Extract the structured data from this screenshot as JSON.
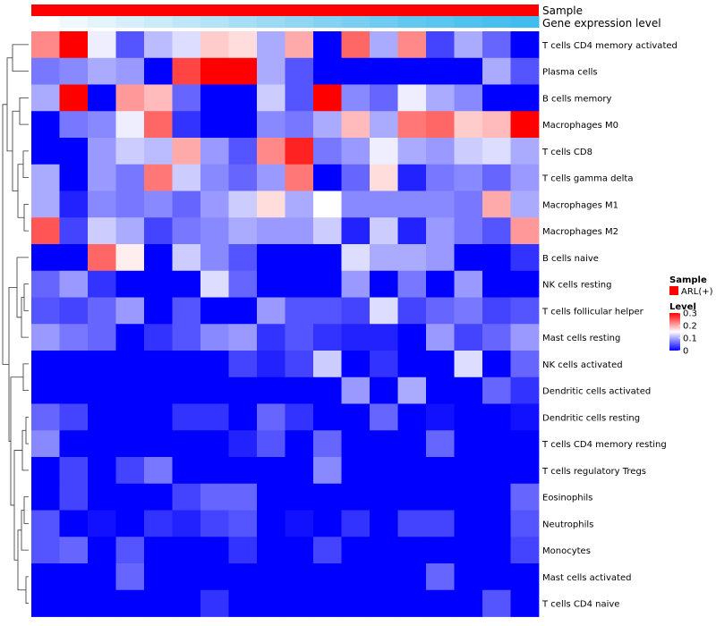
{
  "chart_data": {
    "type": "heatmap",
    "title": "",
    "annotation_tracks": [
      {
        "name": "Sample",
        "label": "Sample",
        "colors": [
          "#ff0000"
        ]
      },
      {
        "name": "Gene expression level",
        "label": "Gene expression level",
        "colors": [
          "#ffffff",
          "#eef8fd",
          "#e3f4fb",
          "#d6effa",
          "#cbebf8",
          "#c0e7f7",
          "#b5e3f6",
          "#a8def5",
          "#9cdaf4",
          "#90d6f3",
          "#84d2f2",
          "#79cef1",
          "#6ecbf1",
          "#63c8f0",
          "#5ac5ef",
          "#50c2ef",
          "#48bfee",
          "#40bcee"
        ]
      }
    ],
    "rows": [
      "T cells CD4 memory activated",
      "Plasma cells",
      "B cells memory",
      "Macrophages M0",
      "T cells CD8",
      "T cells gamma delta",
      "Macrophages M1",
      "Macrophages M2",
      "B cells naive",
      "NK cells resting",
      "T cells follicular helper",
      "Mast cells resting",
      "NK cells activated",
      "Dendritic cells activated",
      "Dendritic cells resting",
      "T cells CD4 memory resting",
      "T cells regulatory  Tregs",
      "Eosinophils",
      "Neutrophils",
      "Monocytes",
      "Mast cells activated",
      "T cells CD4 naive"
    ],
    "num_columns": 18,
    "values": [
      [
        0.22,
        0.3,
        0.14,
        0.05,
        0.11,
        0.13,
        0.18,
        0.17,
        0.1,
        0.2,
        0.0,
        0.24,
        0.1,
        0.22,
        0.04,
        0.1,
        0.06,
        0.0
      ],
      [
        0.07,
        0.08,
        0.1,
        0.09,
        0.0,
        0.26,
        0.3,
        0.31,
        0.1,
        0.05,
        0.0,
        0.0,
        0.0,
        0.0,
        0.0,
        0.0,
        0.1,
        0.05
      ],
      [
        0.1,
        0.3,
        0.0,
        0.21,
        0.19,
        0.06,
        0.0,
        0.0,
        0.12,
        0.05,
        0.31,
        0.08,
        0.06,
        0.14,
        0.1,
        0.08,
        0.0,
        0.0
      ],
      [
        0.0,
        0.07,
        0.08,
        0.14,
        0.24,
        0.03,
        0.0,
        0.0,
        0.08,
        0.07,
        0.1,
        0.19,
        0.1,
        0.23,
        0.24,
        0.18,
        0.19,
        0.3
      ],
      [
        0.0,
        0.0,
        0.09,
        0.12,
        0.11,
        0.2,
        0.09,
        0.05,
        0.22,
        0.28,
        0.07,
        0.09,
        0.14,
        0.1,
        0.09,
        0.12,
        0.13,
        0.1
      ],
      [
        0.1,
        0.0,
        0.09,
        0.07,
        0.23,
        0.12,
        0.08,
        0.06,
        0.09,
        0.23,
        0.0,
        0.06,
        0.17,
        0.02,
        0.07,
        0.08,
        0.06,
        0.09
      ],
      [
        0.1,
        0.02,
        0.08,
        0.07,
        0.08,
        0.06,
        0.09,
        0.12,
        0.17,
        0.1,
        0.15,
        0.08,
        0.08,
        0.08,
        0.08,
        0.07,
        0.2,
        0.1
      ],
      [
        0.25,
        0.04,
        0.12,
        0.1,
        0.04,
        0.07,
        0.08,
        0.1,
        0.09,
        0.09,
        0.12,
        0.02,
        0.12,
        0.02,
        0.09,
        0.07,
        0.05,
        0.21
      ],
      [
        0.0,
        0.0,
        0.24,
        0.16,
        0.0,
        0.12,
        0.08,
        0.05,
        0.0,
        0.0,
        0.0,
        0.13,
        0.1,
        0.1,
        0.09,
        0.0,
        0.0,
        0.03
      ],
      [
        0.06,
        0.09,
        0.03,
        0.0,
        0.0,
        0.0,
        0.13,
        0.06,
        0.0,
        0.0,
        0.0,
        0.09,
        0.0,
        0.07,
        0.0,
        0.09,
        0.0,
        0.0
      ],
      [
        0.05,
        0.04,
        0.06,
        0.09,
        0.0,
        0.05,
        0.0,
        0.0,
        0.09,
        0.05,
        0.05,
        0.04,
        0.13,
        0.04,
        0.06,
        0.07,
        0.04,
        0.05
      ],
      [
        0.09,
        0.07,
        0.06,
        0.0,
        0.03,
        0.05,
        0.08,
        0.09,
        0.03,
        0.05,
        0.03,
        0.02,
        0.02,
        0.0,
        0.09,
        0.04,
        0.06,
        0.09
      ],
      [
        0.0,
        0.0,
        0.0,
        0.0,
        0.0,
        0.0,
        0.0,
        0.04,
        0.02,
        0.04,
        0.12,
        0.0,
        0.03,
        0.0,
        0.0,
        0.13,
        0.0,
        0.06
      ],
      [
        0.0,
        0.0,
        0.0,
        0.0,
        0.0,
        0.0,
        0.0,
        0.0,
        0.0,
        0.0,
        0.0,
        0.09,
        0.0,
        0.1,
        0.0,
        0.0,
        0.06,
        0.03
      ],
      [
        0.06,
        0.04,
        0.0,
        0.0,
        0.0,
        0.03,
        0.03,
        0.0,
        0.06,
        0.03,
        0.0,
        0.0,
        0.06,
        0.0,
        0.01,
        0.0,
        0.0,
        0.01
      ],
      [
        0.08,
        0.0,
        0.0,
        0.0,
        0.0,
        0.0,
        0.0,
        0.02,
        0.05,
        0.0,
        0.06,
        0.0,
        0.0,
        0.0,
        0.06,
        0.0,
        0.0,
        0.0
      ],
      [
        0.0,
        0.04,
        0.0,
        0.04,
        0.07,
        0.0,
        0.0,
        0.0,
        0.0,
        0.0,
        0.08,
        0.0,
        0.0,
        0.0,
        0.0,
        0.0,
        0.0,
        0.0
      ],
      [
        0.0,
        0.04,
        0.0,
        0.0,
        0.0,
        0.04,
        0.06,
        0.06,
        0.0,
        0.0,
        0.0,
        0.0,
        0.0,
        0.0,
        0.0,
        0.0,
        0.0,
        0.06
      ],
      [
        0.05,
        0.0,
        0.01,
        0.0,
        0.03,
        0.02,
        0.04,
        0.05,
        0.0,
        0.01,
        0.0,
        0.03,
        0.0,
        0.04,
        0.04,
        0.0,
        0.0,
        0.05
      ],
      [
        0.05,
        0.06,
        0.0,
        0.05,
        0.0,
        0.0,
        0.0,
        0.03,
        0.0,
        0.0,
        0.04,
        0.0,
        0.0,
        0.0,
        0.0,
        0.0,
        0.0,
        0.04
      ],
      [
        0.0,
        0.0,
        0.0,
        0.06,
        0.0,
        0.0,
        0.0,
        0.0,
        0.0,
        0.0,
        0.0,
        0.0,
        0.0,
        0.0,
        0.06,
        0.0,
        0.0,
        0.0
      ],
      [
        0.0,
        0.0,
        0.0,
        0.0,
        0.0,
        0.0,
        0.03,
        0.0,
        0.0,
        0.0,
        0.0,
        0.0,
        0.0,
        0.0,
        0.0,
        0.0,
        0.05,
        0.0
      ]
    ],
    "color_scale": {
      "min": 0,
      "mid": 0.15,
      "max": 0.3,
      "colors": [
        "#0000ff",
        "#ffffff",
        "#ff0000"
      ]
    },
    "dendrogram": "left",
    "legend": {
      "sample_title": "Sample",
      "sample_entry": "ARL(+)",
      "sample_color": "#ff0000",
      "level_title": "Level",
      "level_ticks": [
        "0.3",
        "0.2",
        "0.1",
        "0"
      ],
      "placement": "right"
    }
  }
}
